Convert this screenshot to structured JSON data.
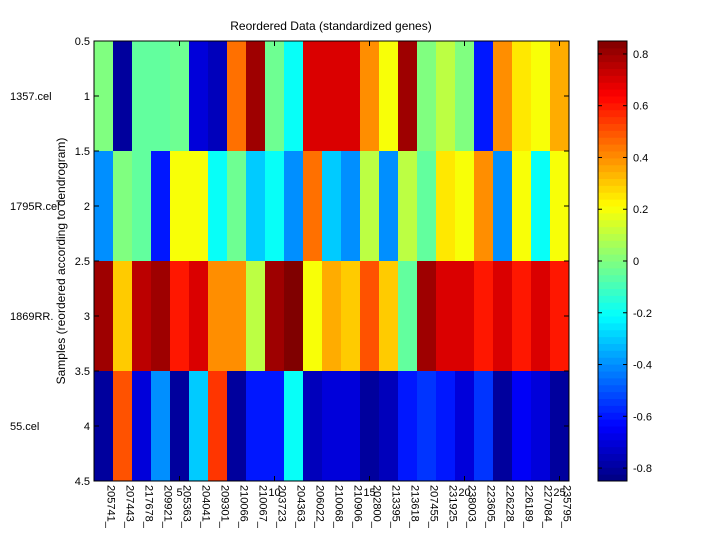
{
  "chart_data": {
    "type": "heatmap",
    "title": "Reordered Data (standardized genes)",
    "xlabel": "",
    "ylabel": "Samples (reordered according to dendrogram)",
    "xlim": [
      0.5,
      25.5
    ],
    "ylim": [
      0.5,
      4.5
    ],
    "y_reversed": true,
    "x_ticks": [
      5,
      10,
      15,
      20,
      25
    ],
    "y_ticks": [
      0.5,
      1,
      1.5,
      2,
      2.5,
      3,
      3.5,
      4,
      4.5
    ],
    "row_labels": [
      "1357.cel",
      "1795R.cel",
      "1869RR.",
      "55.cel"
    ],
    "column_labels": [
      "205741_",
      "207443_",
      "217678_",
      "209921_",
      "205363_",
      "204041_",
      "209301_",
      "210066_",
      "210067_",
      "203723_",
      "204363_",
      "206022_",
      "210068_",
      "210906_",
      "202800_",
      "213395_",
      "213618_",
      "207455_",
      "231925_",
      "238003_",
      "223605_",
      "226228_",
      "226189_",
      "227084_",
      "235795_"
    ],
    "values": [
      [
        0.0,
        -0.8,
        -0.05,
        -0.05,
        -0.03,
        -0.7,
        -0.75,
        0.45,
        0.8,
        -0.03,
        -0.2,
        0.7,
        0.7,
        0.7,
        0.4,
        0.2,
        0.8,
        0.0,
        0.1,
        0.0,
        -0.6,
        0.4,
        0.25,
        0.2,
        0.35
      ],
      [
        -0.4,
        0.0,
        -0.05,
        -0.6,
        0.2,
        0.2,
        -0.2,
        -0.03,
        -0.3,
        -0.2,
        -0.4,
        0.45,
        -0.3,
        -0.4,
        0.1,
        -0.4,
        0.1,
        -0.05,
        0.25,
        0.2,
        0.4,
        -0.4,
        0.2,
        -0.2,
        0.2
      ],
      [
        0.8,
        0.3,
        0.75,
        0.8,
        0.6,
        0.7,
        0.4,
        0.4,
        0.1,
        0.8,
        0.85,
        0.2,
        0.35,
        0.3,
        0.5,
        0.3,
        -0.05,
        0.8,
        0.7,
        0.7,
        0.6,
        0.7,
        0.6,
        0.7,
        0.6
      ],
      [
        -0.8,
        0.5,
        -0.7,
        -0.4,
        -0.8,
        -0.3,
        0.55,
        -0.8,
        -0.6,
        -0.6,
        -0.2,
        -0.75,
        -0.7,
        -0.7,
        -0.8,
        -0.75,
        -0.6,
        -0.55,
        -0.6,
        -0.7,
        -0.55,
        -0.8,
        -0.65,
        -0.7,
        -0.8
      ]
    ],
    "colorbar": {
      "colormap": "jet",
      "range": [
        -0.85,
        0.85
      ],
      "ticks": [
        -0.8,
        -0.6,
        -0.4,
        -0.2,
        0,
        0.2,
        0.4,
        0.6,
        0.8
      ]
    },
    "grid": false,
    "legend": "colorbar-right"
  }
}
